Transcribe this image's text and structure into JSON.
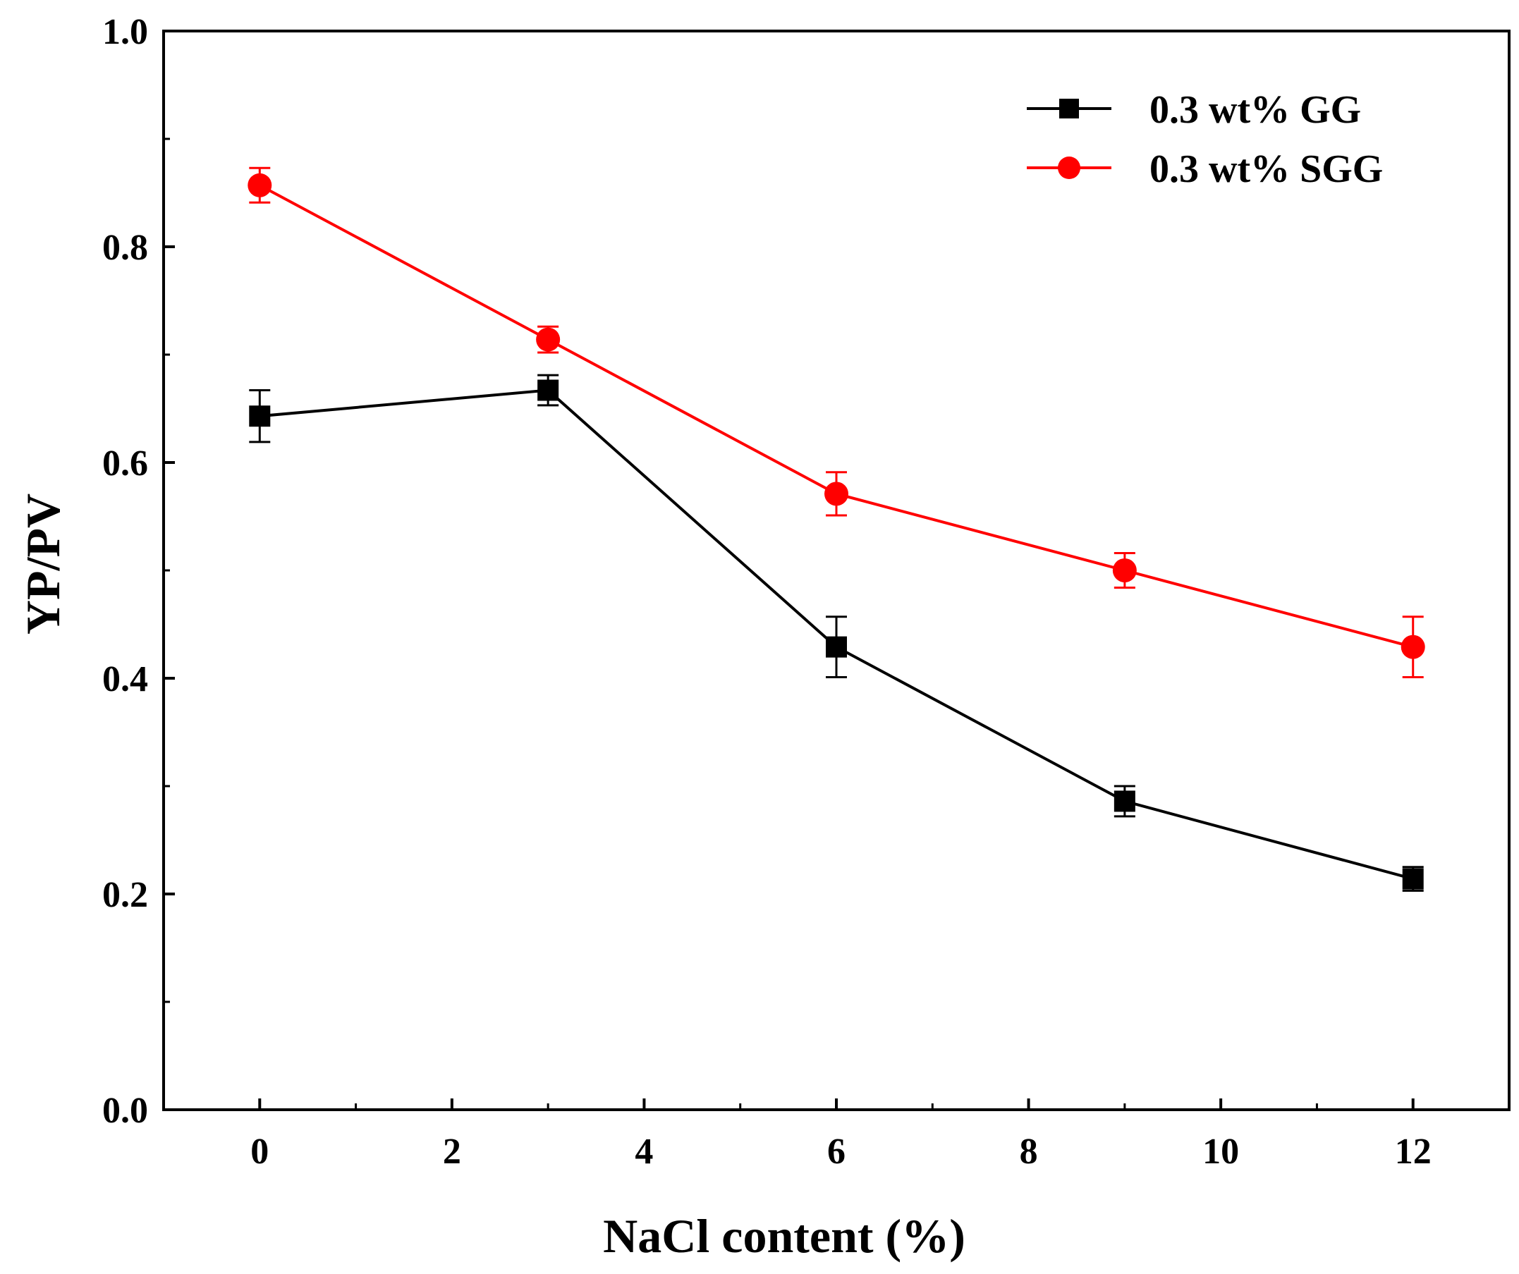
{
  "chart_data": {
    "type": "line",
    "title": "",
    "xlabel": "NaCl content (%)",
    "ylabel": "YP/PV",
    "xlim": [
      -1,
      13
    ],
    "ylim": [
      0.0,
      1.0
    ],
    "xticks": [
      0,
      2,
      4,
      6,
      8,
      10,
      12
    ],
    "xtick_labels": [
      "0",
      "2",
      "4",
      "6",
      "8",
      "10",
      "12"
    ],
    "yticks": [
      0.0,
      0.2,
      0.4,
      0.6,
      0.8,
      1.0
    ],
    "ytick_labels": [
      "0.0",
      "0.2",
      "0.4",
      "0.6",
      "0.8",
      "1.0"
    ],
    "grid": false,
    "legend_position": "top-right",
    "x": [
      0,
      3,
      6,
      9,
      12
    ],
    "series": [
      {
        "name": "0.3 wt% GG",
        "color": "#000000",
        "marker": "square",
        "values": [
          0.643,
          0.667,
          0.429,
          0.286,
          0.214
        ],
        "errors": [
          0.024,
          0.014,
          0.028,
          0.014,
          0.011
        ]
      },
      {
        "name": "0.3 wt% SGG",
        "color": "#ff0000",
        "marker": "circle",
        "values": [
          0.857,
          0.714,
          0.571,
          0.5,
          0.429
        ],
        "errors": [
          0.016,
          0.012,
          0.02,
          0.016,
          0.028
        ]
      }
    ]
  }
}
